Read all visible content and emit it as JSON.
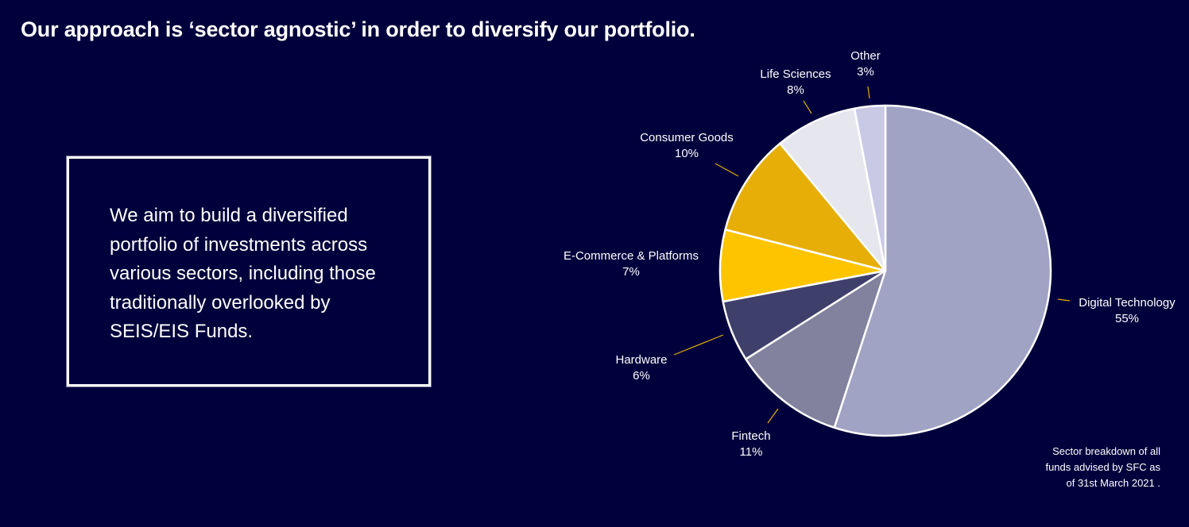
{
  "headline": "Our approach is ‘sector agnostic’ in order to diversify our portfolio.",
  "blurb_lines": [
    "We aim to build a diversified",
    "portfolio of investments across",
    "various sectors, including those",
    "traditionally overlooked by",
    "SEIS/EIS Funds."
  ],
  "footnote_lines": [
    "Sector breakdown of all",
    "funds advised by SFC as",
    "of 31st March 2021 ."
  ],
  "chart_data": {
    "type": "pie",
    "title": "",
    "slices": [
      {
        "label": "Digital Technology",
        "value": 55,
        "value_label": "55%",
        "color": "#a0a3c4"
      },
      {
        "label": "Fintech",
        "value": 11,
        "value_label": "11%",
        "color": "#82829e"
      },
      {
        "label": "Hardware",
        "value": 6,
        "value_label": "6%",
        "color": "#3f3f6b"
      },
      {
        "label": "E-Commerce & Platforms",
        "value": 7,
        "value_label": "7%",
        "color": "#ffc400"
      },
      {
        "label": "Consumer Goods",
        "value": 10,
        "value_label": "10%",
        "color": "#e6ae06"
      },
      {
        "label": "Life Sciences",
        "value": 8,
        "value_label": "8%",
        "color": "#e6e6ee"
      },
      {
        "label": "Other",
        "value": 3,
        "value_label": "3%",
        "color": "#c9c9e6"
      }
    ],
    "start": "12 o'clock",
    "direction": "clockwise",
    "slice_border_color": "#ffffff",
    "leader_line_color": "#e6ae06"
  }
}
